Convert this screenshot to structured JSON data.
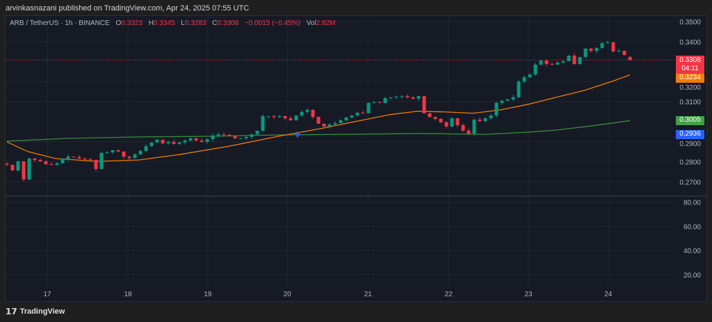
{
  "publish_line": "arvinkasnazani published on TradingView.com, Apr 24, 2025 07:55 UTC",
  "legend": {
    "symbol": "ARB / TetherUS · 1h · BINANCE",
    "o_label": "O",
    "o": "0.3323",
    "h_label": "H",
    "h": "0.3345",
    "l_label": "L",
    "l": "0.3283",
    "c_label": "C",
    "c": "0.3308",
    "change": "−0.0015 (−0.45%)",
    "vol_label": "Vol",
    "vol": "2.82M"
  },
  "price_labels": {
    "last": "0.3308",
    "countdown": "04:11",
    "ma_fast": "0.3234",
    "ma_slow": "0.3005",
    "marker": "0.2936"
  },
  "footer": {
    "brand": "TradingView"
  },
  "colors": {
    "up": "#089981",
    "down": "#f23645",
    "ma_fast": "#f57c00",
    "ma_slow": "#388e3c",
    "marker": "#2962ff"
  },
  "chart_data": {
    "type": "candlestick",
    "price_axis": [
      "0.3500",
      "0.3400",
      "0.3200",
      "0.3100",
      "0.2900",
      "0.2800",
      "0.2700"
    ],
    "price_axis_values": [
      0.35,
      0.34,
      0.32,
      0.31,
      0.29,
      0.28,
      0.27
    ],
    "ylim": [
      0.265,
      0.353
    ],
    "x_ticks": [
      {
        "label": "17",
        "index": 7.25
      },
      {
        "label": "18",
        "index": 21.75
      },
      {
        "label": "19",
        "index": 36.1
      },
      {
        "label": "20",
        "index": 50.4
      },
      {
        "label": "21",
        "index": 64.9
      },
      {
        "label": "22",
        "index": 79.4
      },
      {
        "label": "23",
        "index": 93.75
      },
      {
        "label": "24",
        "index": 108.1
      }
    ],
    "closes": [
      0.2785,
      0.2757,
      0.2802,
      0.2712,
      0.2816,
      0.2809,
      0.2802,
      0.2788,
      0.2785,
      0.2792,
      0.2816,
      0.2826,
      0.2823,
      0.2816,
      0.2812,
      0.2809,
      0.2764,
      0.2844,
      0.2847,
      0.2858,
      0.2851,
      0.2826,
      0.2819,
      0.2837,
      0.2854,
      0.2878,
      0.2896,
      0.291,
      0.2892,
      0.2899,
      0.2889,
      0.2896,
      0.2906,
      0.2917,
      0.2906,
      0.2899,
      0.2913,
      0.2931,
      0.2937,
      0.2934,
      0.2927,
      0.2917,
      0.2917,
      0.2924,
      0.2937,
      0.2955,
      0.3028,
      0.3028,
      0.3024,
      0.3028,
      0.3017,
      0.3007,
      0.3031,
      0.3049,
      0.3059,
      0.3024,
      0.299,
      0.2976,
      0.2986,
      0.2993,
      0.3007,
      0.3021,
      0.3031,
      0.3045,
      0.3042,
      0.3094,
      0.3097,
      0.3094,
      0.3118,
      0.3122,
      0.3125,
      0.3128,
      0.3122,
      0.3115,
      0.3128,
      0.3042,
      0.3024,
      0.3014,
      0.2997,
      0.2976,
      0.3017,
      0.2983,
      0.2955,
      0.2941,
      0.301,
      0.3003,
      0.3017,
      0.3031,
      0.3094,
      0.3104,
      0.3111,
      0.3122,
      0.3201,
      0.3222,
      0.3236,
      0.3285,
      0.3306,
      0.3288,
      0.3285,
      0.3295,
      0.3302,
      0.333,
      0.3288,
      0.3323,
      0.3365,
      0.3354,
      0.3368,
      0.3392,
      0.3396,
      0.3351,
      0.3354,
      0.3333,
      0.3308
    ],
    "ma_fast": {
      "index": [
        0,
        3.75,
        8.75,
        16.25,
        23.75,
        31.25,
        40,
        48.75,
        56.25,
        63.75,
        68.75,
        73.75,
        78.75,
        83.75,
        88.75,
        93.75,
        98.75,
        103.75,
        108.75,
        112
      ],
      "values": [
        0.2899,
        0.2851,
        0.2816,
        0.2802,
        0.2809,
        0.2837,
        0.2878,
        0.2927,
        0.2965,
        0.3007,
        0.3035,
        0.3052,
        0.3049,
        0.3042,
        0.3059,
        0.3087,
        0.3122,
        0.3156,
        0.3201,
        0.3234
      ]
    },
    "ma_slow": {
      "index": [
        0,
        11.25,
        23.75,
        36.25,
        48.75,
        61.25,
        73.75,
        86.25,
        93.75,
        98.75,
        105,
        112
      ],
      "values": [
        0.2903,
        0.2917,
        0.2924,
        0.2927,
        0.2934,
        0.2937,
        0.2941,
        0.2937,
        0.2948,
        0.2958,
        0.2979,
        0.3005
      ]
    },
    "marker": {
      "index": 52.25,
      "value": 0.2936
    },
    "oscillator_axis": [
      "80.00",
      "60.00",
      "40.00",
      "20.00"
    ],
    "oscillator_values": [
      80,
      60,
      40,
      20
    ]
  }
}
